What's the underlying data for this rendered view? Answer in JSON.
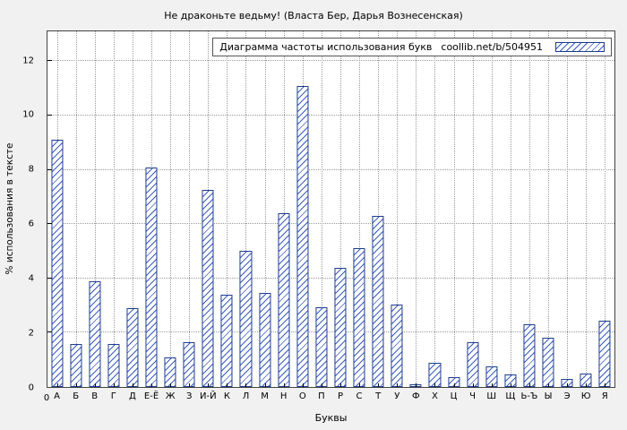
{
  "chart_data": {
    "type": "bar",
    "title": "Не драконьте ведьму! (Власта Бер, Дарья Вознесенская)",
    "legend_label": "Диаграмма частоты использования букв",
    "legend_source": "coollib.net/b/504951",
    "xlabel": "Буквы",
    "ylabel": "% использования в тексте",
    "origin_label": "0",
    "ylim": [
      0,
      13.1
    ],
    "yticks": [
      0,
      2,
      4,
      6,
      8,
      10,
      12
    ],
    "grid": true,
    "legend_position": "top-right",
    "categories": [
      "А",
      "Б",
      "В",
      "Г",
      "Д",
      "Е-Ё",
      "Ж",
      "З",
      "И-Й",
      "К",
      "Л",
      "М",
      "Н",
      "О",
      "П",
      "Р",
      "С",
      "Т",
      "У",
      "Ф",
      "Х",
      "Ц",
      "Ч",
      "Ш",
      "Щ",
      "Ь-Ъ",
      "Ы",
      "Э",
      "Ю",
      "Я"
    ],
    "values": [
      9.1,
      1.6,
      3.9,
      1.6,
      2.9,
      8.1,
      1.1,
      1.65,
      7.25,
      3.4,
      5.0,
      3.45,
      6.4,
      11.1,
      2.95,
      4.4,
      5.1,
      6.3,
      3.05,
      0.1,
      0.9,
      0.35,
      1.65,
      0.75,
      0.45,
      2.3,
      1.8,
      0.3,
      0.5,
      2.45
    ]
  },
  "colors": {
    "figure_bg": "#f1f1f1",
    "plot_bg": "#ffffff",
    "bar_border": "#1c3c8f",
    "bar_hatch": "#3a5bbf",
    "grid": "#9a9a9a",
    "text": "#000000"
  }
}
